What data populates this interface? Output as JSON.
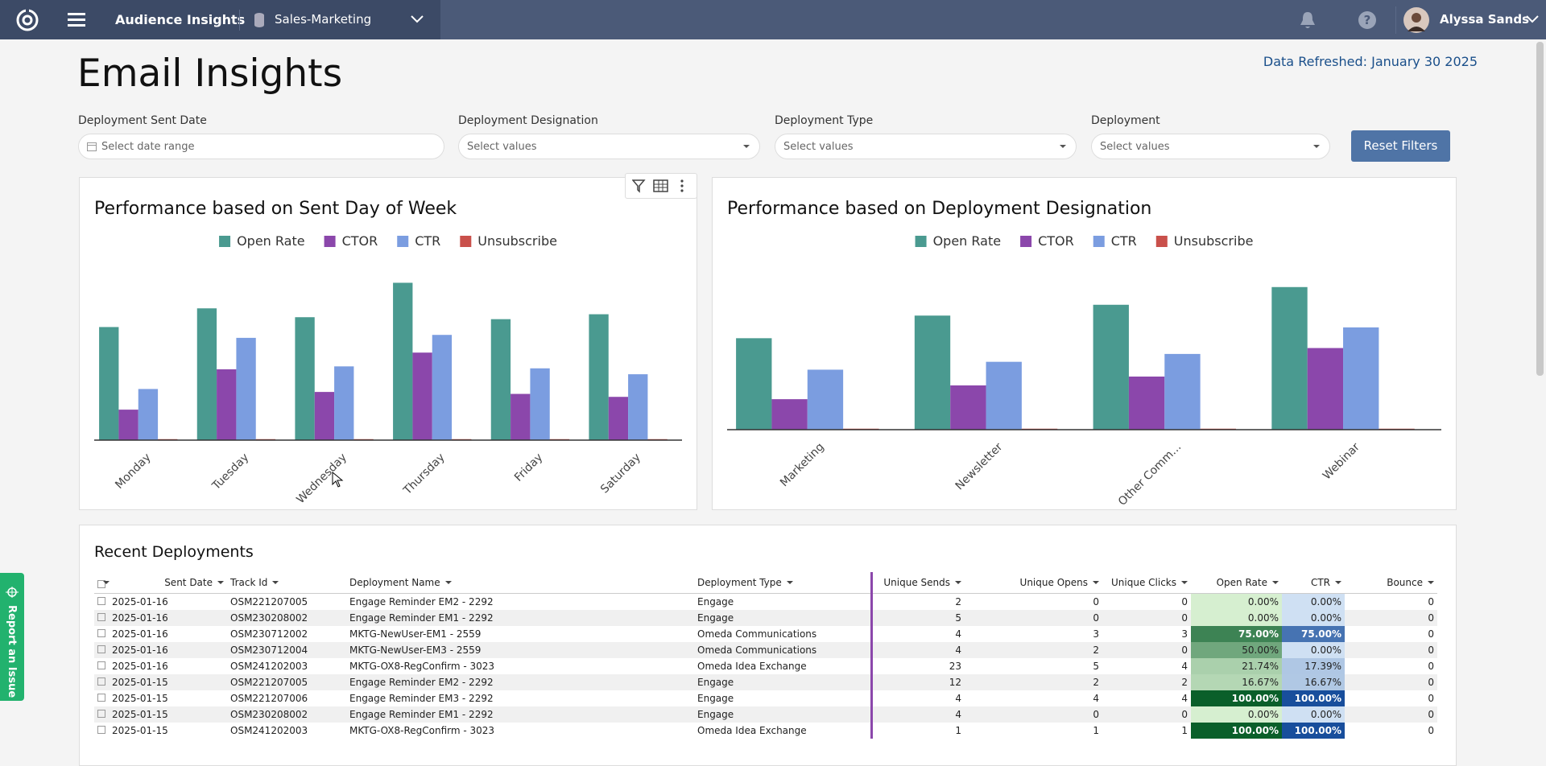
{
  "header": {
    "app": "Audience Insights",
    "workspace": "Sales-Marketing",
    "user": "Alyssa Sands"
  },
  "page": {
    "title": "Email Insights",
    "refreshed": "Data Refreshed: January 30 2025"
  },
  "filters": [
    {
      "label": "Deployment Sent Date",
      "placeholder": "Select date range"
    },
    {
      "label": "Deployment Designation",
      "placeholder": "Select values"
    },
    {
      "label": "Deployment Type",
      "placeholder": "Select values"
    },
    {
      "label": "Deployment",
      "placeholder": "Select values"
    }
  ],
  "reset_button": "Reset Filters",
  "charts": [
    {
      "type": "bar",
      "title": "Performance based on Sent Day of Week",
      "categories": [
        "Monday",
        "Tuesday",
        "Wednesday",
        "Thursday",
        "Friday",
        "Saturday"
      ],
      "ylim": [
        0,
        180
      ],
      "series": [
        {
          "name": "Open Rate",
          "color": "#4a9a90",
          "values": [
            115,
            134,
            125,
            160,
            123,
            128
          ]
        },
        {
          "name": "CTOR",
          "color": "#8b47ab",
          "values": [
            31,
            72,
            49,
            89,
            47,
            44
          ]
        },
        {
          "name": "CTR",
          "color": "#7b9de0",
          "values": [
            52,
            104,
            75,
            107,
            73,
            67
          ]
        },
        {
          "name": "Unsubscribe",
          "color": "#c9504b",
          "values": [
            1,
            1,
            1,
            1,
            1,
            1
          ]
        }
      ]
    },
    {
      "type": "bar",
      "title": "Performance based on Deployment Designation",
      "categories": [
        "Marketing",
        "Newsletter",
        "Other Comm...",
        "Webinar"
      ],
      "ylim": [
        0,
        180
      ],
      "series": [
        {
          "name": "Open Rate",
          "color": "#4a9a90",
          "values": [
            93,
            116,
            127,
            145
          ]
        },
        {
          "name": "CTOR",
          "color": "#8b47ab",
          "values": [
            31,
            45,
            54,
            83
          ]
        },
        {
          "name": "CTR",
          "color": "#7b9de0",
          "values": [
            61,
            69,
            77,
            104
          ]
        },
        {
          "name": "Unsubscribe",
          "color": "#c9504b",
          "values": [
            1,
            1,
            1,
            1
          ]
        }
      ]
    }
  ],
  "table": {
    "title": "Recent Deployments",
    "columns": [
      "Sent Date",
      "Track Id",
      "Deployment Name",
      "Deployment Type",
      "Unique Sends",
      "Unique Opens",
      "Unique Clicks",
      "Open Rate",
      "CTR",
      "Bounce"
    ],
    "rows": [
      [
        "2025-01-16",
        "OSM221207005",
        "Engage Reminder EM2 - 2292",
        "Engage",
        2,
        0,
        0,
        "0.00%",
        "0.00%",
        0
      ],
      [
        "2025-01-16",
        "OSM230208002",
        "Engage Reminder EM1 - 2292",
        "Engage",
        5,
        0,
        0,
        "0.00%",
        "0.00%",
        0
      ],
      [
        "2025-01-16",
        "OSM230712002",
        "MKTG-NewUser-EM1 - 2559",
        "Omeda Communications",
        4,
        3,
        3,
        "75.00%",
        "75.00%",
        0
      ],
      [
        "2025-01-16",
        "OSM230712004",
        "MKTG-NewUser-EM3 - 2559",
        "Omeda Communications",
        4,
        2,
        0,
        "50.00%",
        "0.00%",
        0
      ],
      [
        "2025-01-16",
        "OSM241202003",
        "MKTG-OX8-RegConfirm - 3023",
        "Omeda Idea Exchange",
        23,
        5,
        4,
        "21.74%",
        "17.39%",
        0
      ],
      [
        "2025-01-15",
        "OSM221207005",
        "Engage Reminder EM2 - 2292",
        "Engage",
        12,
        2,
        2,
        "16.67%",
        "16.67%",
        0
      ],
      [
        "2025-01-15",
        "OSM221207006",
        "Engage Reminder EM3 - 2292",
        "Engage",
        4,
        4,
        4,
        "100.00%",
        "100.00%",
        0
      ],
      [
        "2025-01-15",
        "OSM230208002",
        "Engage Reminder EM1 - 2292",
        "Engage",
        4,
        0,
        0,
        "0.00%",
        "0.00%",
        0
      ],
      [
        "2025-01-15",
        "OSM241202003",
        "MKTG-OX8-RegConfirm - 3023",
        "Omeda Idea Exchange",
        1,
        1,
        1,
        "100.00%",
        "100.00%",
        0
      ]
    ]
  },
  "report_tab": "Report an Issue"
}
